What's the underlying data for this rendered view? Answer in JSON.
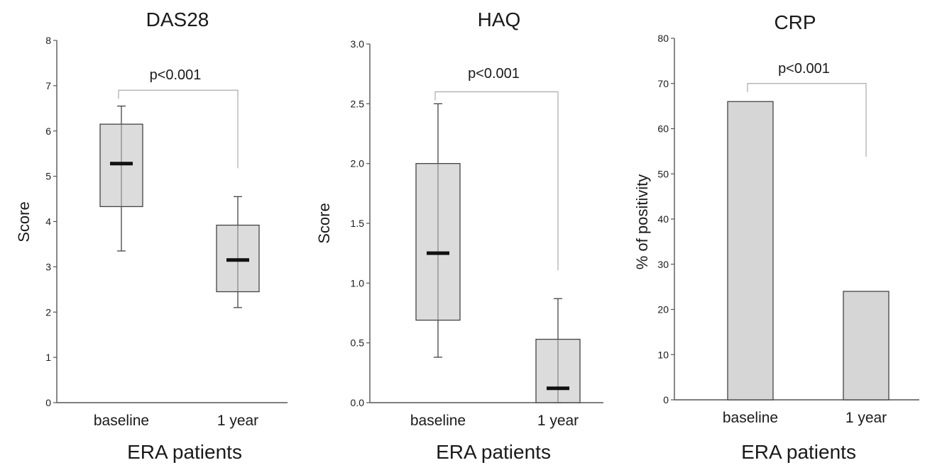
{
  "chart_data": [
    {
      "type": "box",
      "title": "DAS28",
      "xlabel": "ERA patients",
      "ylabel": "Score",
      "ylim": [
        0,
        8
      ],
      "yticks": [
        "0",
        "1",
        "2",
        "3",
        "4",
        "5",
        "6",
        "7",
        "8"
      ],
      "categories": [
        "baseline",
        "1 year"
      ],
      "boxes": [
        {
          "category": "baseline",
          "whisker_low": 3.35,
          "q1": 4.33,
          "median": 5.28,
          "q3": 6.15,
          "whisker_high": 6.55
        },
        {
          "category": "1 year",
          "whisker_low": 2.1,
          "q1": 2.45,
          "median": 3.15,
          "q3": 3.92,
          "whisker_high": 4.55
        }
      ],
      "annotation": {
        "text": "p<0.001",
        "y": 6.9
      }
    },
    {
      "type": "box",
      "title": "HAQ",
      "xlabel": "ERA patients",
      "ylabel": "Score",
      "ylim": [
        0,
        3.0
      ],
      "yticks": [
        "0.0",
        "0.5",
        "1.0",
        "1.5",
        "2.0",
        "2.5",
        "3.0"
      ],
      "categories": [
        "baseline",
        "1 year"
      ],
      "boxes": [
        {
          "category": "baseline",
          "whisker_low": 0.38,
          "q1": 0.69,
          "median": 1.25,
          "q3": 2.0,
          "whisker_high": 2.5
        },
        {
          "category": "1 year",
          "whisker_low": 0.0,
          "q1": 0.0,
          "median": 0.12,
          "q3": 0.53,
          "whisker_high": 0.87
        }
      ],
      "annotation": {
        "text": "p<0.001",
        "y": 2.6
      }
    },
    {
      "type": "bar",
      "title": "CRP",
      "xlabel": "ERA patients",
      "ylabel": "% of positivity",
      "ylim": [
        0,
        80
      ],
      "yticks": [
        "0",
        "10",
        "20",
        "30",
        "40",
        "50",
        "60",
        "70",
        "80"
      ],
      "categories": [
        "baseline",
        "1 year"
      ],
      "values": [
        66,
        24
      ],
      "annotation": {
        "text": "p<0.001",
        "y": 70
      }
    }
  ]
}
